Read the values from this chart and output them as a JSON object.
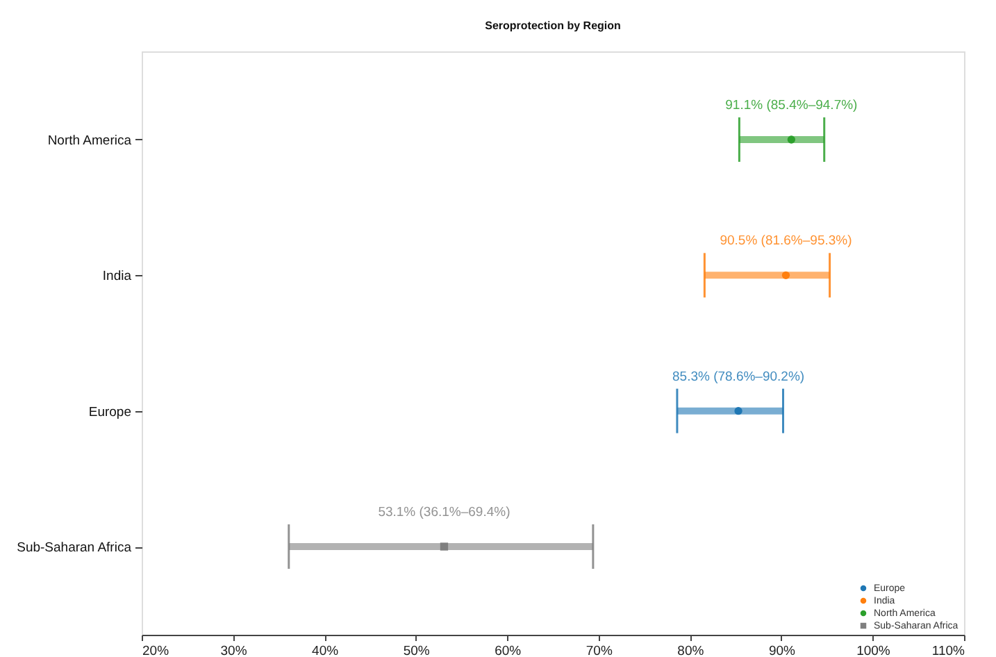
{
  "chart_data": {
    "type": "scatter",
    "title": "Seroprotection by Region",
    "orientation": "horizontal",
    "categories": [
      "North America",
      "India",
      "Europe",
      "Sub-Saharan Africa"
    ],
    "series": [
      {
        "name": "Europe",
        "color": "#1f77b4",
        "marker": "circle",
        "values": [
          null,
          null,
          85.3,
          null
        ],
        "errors": [
          null,
          null,
          [
            78.6,
            90.2
          ],
          null
        ],
        "value_labels": [
          null,
          null,
          "85.3% (78.6%–90.2%)",
          null
        ]
      },
      {
        "name": "India",
        "color": "#ff7f0e",
        "marker": "circle",
        "values": [
          null,
          90.5,
          null,
          null
        ],
        "errors": [
          null,
          [
            81.6,
            95.3
          ],
          null,
          null
        ],
        "value_labels": [
          null,
          "90.5% (81.6%–95.3%)",
          null,
          null
        ]
      },
      {
        "name": "North America",
        "color": "#2ca02c",
        "marker": "circle",
        "values": [
          91.1,
          null,
          null,
          null
        ],
        "errors": [
          [
            85.4,
            94.7
          ],
          null,
          null,
          null
        ],
        "value_labels": [
          "91.1% (85.4%–94.7%)",
          null,
          null,
          null
        ]
      },
      {
        "name": "Sub-Saharan Africa",
        "color": "#7f7f7f",
        "marker": "square",
        "values": [
          null,
          null,
          null,
          53.1
        ],
        "errors": [
          null,
          null,
          null,
          [
            36.1,
            69.4
          ]
        ],
        "value_labels": [
          null,
          null,
          null,
          "53.1% (36.1%–69.4%)"
        ]
      }
    ],
    "xlim": [
      20,
      110
    ],
    "xticks": [
      {
        "value": 20,
        "label": "20%"
      },
      {
        "value": 30,
        "label": "30%"
      },
      {
        "value": 40,
        "label": "40%"
      },
      {
        "value": 50,
        "label": "50%"
      },
      {
        "value": 60,
        "label": "60%"
      },
      {
        "value": 70,
        "label": "70%"
      },
      {
        "value": 80,
        "label": "80%"
      },
      {
        "value": 90,
        "label": "90%"
      },
      {
        "value": 100,
        "label": "100%"
      },
      {
        "value": 110,
        "label": "110%"
      }
    ],
    "grid": false,
    "legend": "bottom right"
  }
}
